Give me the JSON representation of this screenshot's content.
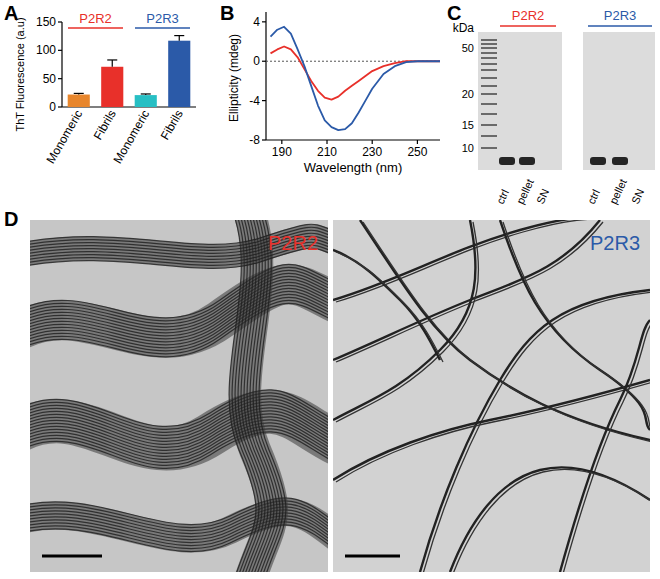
{
  "panel_labels": [
    "A",
    "B",
    "C",
    "D"
  ],
  "chart_data": [
    {
      "type": "bar",
      "y_label": "ThT Fluorescence (a.u)",
      "categories": [
        "Monomeric",
        "Fibrils",
        "Monomeric",
        "Fibrils"
      ],
      "values": [
        22,
        71,
        21,
        117
      ],
      "errors": [
        2,
        12,
        2,
        9
      ],
      "colors": [
        "#e8862c",
        "#e8302a",
        "#27bfc4",
        "#2b5aa8"
      ],
      "ylim": [
        0,
        150
      ],
      "yticks": [
        0,
        50,
        100,
        150
      ],
      "annotations": [
        {
          "text": "P2R2",
          "color": "#e8302a"
        },
        {
          "text": "P2R3",
          "color": "#2b5aa8"
        }
      ]
    },
    {
      "type": "line",
      "x_label": "Wavelength (nm)",
      "y_label": "Ellipticity (mdeg)",
      "x": [
        185,
        188,
        191,
        194,
        197,
        200,
        203,
        206,
        209,
        212,
        215,
        218,
        221,
        224,
        227,
        230,
        235,
        240,
        245,
        250,
        255,
        260
      ],
      "series": [
        {
          "color": "#e8302a",
          "values": [
            0.8,
            1.2,
            1.5,
            1.2,
            0.4,
            -0.8,
            -2.0,
            -3.0,
            -3.7,
            -3.9,
            -3.6,
            -3.0,
            -2.5,
            -2.0,
            -1.5,
            -1.0,
            -0.5,
            -0.2,
            0,
            0,
            0,
            0
          ]
        },
        {
          "color": "#2b5aa8",
          "values": [
            2.5,
            3.2,
            3.5,
            2.8,
            1.2,
            -0.5,
            -2.5,
            -4.5,
            -6.0,
            -6.7,
            -7.0,
            -6.9,
            -6.3,
            -5.2,
            -4.0,
            -2.8,
            -1.3,
            -0.5,
            -0.1,
            0,
            0,
            0
          ]
        }
      ],
      "xlim": [
        183,
        260
      ],
      "ylim": [
        -8,
        5
      ],
      "xticks": [
        190,
        210,
        230,
        250
      ],
      "yticks": [
        -8,
        -4,
        0,
        4
      ]
    }
  ],
  "gel": {
    "unit": "kDa",
    "markers": [
      50,
      20,
      15,
      10
    ],
    "headers": [
      {
        "text": "P2R2",
        "color": "#e8302a"
      },
      {
        "text": "P2R3",
        "color": "#2b5aa8"
      }
    ],
    "lanes": [
      "ctrl",
      "pellet",
      "SN"
    ]
  },
  "micrographs": [
    {
      "label": "P2R2",
      "color": "#e8302a"
    },
    {
      "label": "P2R3",
      "color": "#2b5aa8"
    }
  ]
}
